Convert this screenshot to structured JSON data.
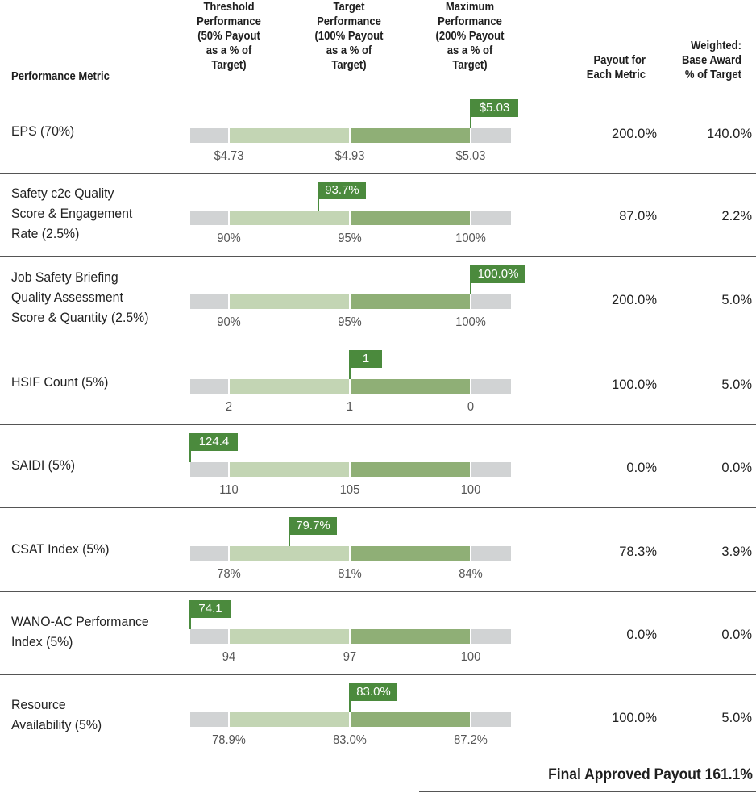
{
  "headers": {
    "metric": "Performance Metric",
    "threshold": [
      "Threshold",
      "Performance",
      "(50% Payout",
      "as a % of",
      "Target)"
    ],
    "target": [
      "Target",
      "Performance",
      "(100% Payout",
      "as a % of",
      "Target)"
    ],
    "maximum": [
      "Maximum",
      "Performance",
      "(200% Payout",
      "as a % of",
      "Target)"
    ],
    "payout": [
      "Payout for",
      "Each Metric"
    ],
    "weighted": [
      "Weighted:",
      "Base Award",
      "% of Target"
    ]
  },
  "rows": [
    {
      "metric": [
        "EPS (70%)"
      ],
      "threshold": "$4.73",
      "target": "$4.93",
      "maximum": "$5.03",
      "actual": "$5.03",
      "position": 1.0,
      "payout": "200.0%",
      "weighted": "140.0%"
    },
    {
      "metric": [
        "Safety c2c Quality",
        "Score & Engagement",
        "Rate (2.5%)"
      ],
      "threshold": "90%",
      "target": "95%",
      "maximum": "100%",
      "actual": "93.7%",
      "position": 0.37,
      "payout": "87.0%",
      "weighted": "2.2%"
    },
    {
      "metric": [
        "Job Safety Briefing",
        "Quality Assessment",
        "Score & Quantity (2.5%)"
      ],
      "threshold": "90%",
      "target": "95%",
      "maximum": "100%",
      "actual": "100.0%",
      "position": 1.0,
      "payout": "200.0%",
      "weighted": "5.0%"
    },
    {
      "metric": [
        "HSIF Count (5%)"
      ],
      "threshold": "2",
      "target": "1",
      "maximum": "0",
      "actual": "1",
      "position": 0.5,
      "payout": "100.0%",
      "weighted": "5.0%"
    },
    {
      "metric": [
        "SAIDI (5%)"
      ],
      "threshold": "110",
      "target": "105",
      "maximum": "100",
      "actual": "124.4",
      "position": -0.16,
      "payout": "0.0%",
      "weighted": "0.0%"
    },
    {
      "metric": [
        "CSAT Index (5%)"
      ],
      "threshold": "78%",
      "target": "81%",
      "maximum": "84%",
      "actual": "79.7%",
      "position": 0.25,
      "payout": "78.3%",
      "weighted": "3.9%"
    },
    {
      "metric": [
        "WANO-AC Performance",
        "Index (5%)"
      ],
      "threshold": "94",
      "target": "97",
      "maximum": "100",
      "actual": "74.1",
      "position": -0.16,
      "payout": "0.0%",
      "weighted": "0.0%"
    },
    {
      "metric": [
        "Resource",
        "Availability (5%)"
      ],
      "threshold": "78.9%",
      "target": "83.0%",
      "maximum": "87.2%",
      "actual": "83.0%",
      "position": 0.5,
      "payout": "100.0%",
      "weighted": "5.0%"
    }
  ],
  "final": "Final Approved Payout 161.1%",
  "colors": {
    "flag": "#4b8a3d",
    "bar_grey": "#d1d3d4",
    "bar_light": "#c3d5b4",
    "bar_dark": "#8faf76"
  }
}
